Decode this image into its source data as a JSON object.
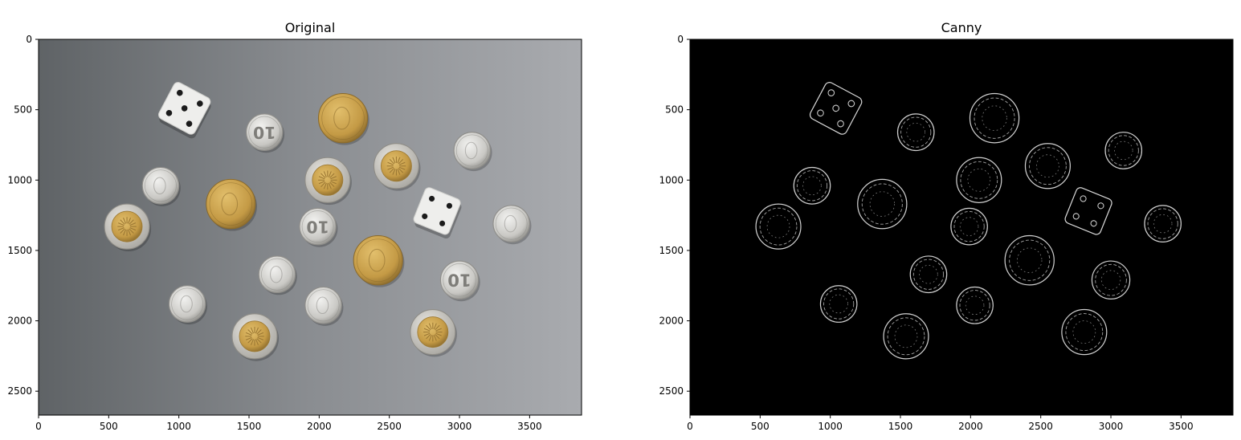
{
  "panels": [
    {
      "id": "original",
      "title": "Original",
      "x_ticks": [
        0,
        500,
        1000,
        1500,
        2000,
        2500,
        3000,
        3500
      ],
      "y_ticks": [
        0,
        500,
        1000,
        1500,
        2000,
        2500
      ],
      "xlim": [
        0,
        3870
      ],
      "ylim": [
        2670,
        0
      ]
    },
    {
      "id": "canny",
      "title": "Canny",
      "x_ticks": [
        0,
        500,
        1000,
        1500,
        2000,
        2500,
        3000,
        3500
      ],
      "y_ticks": [
        0,
        500,
        1000,
        1500,
        2000,
        2500
      ],
      "xlim": [
        0,
        3870
      ],
      "ylim": [
        2670,
        0
      ]
    }
  ],
  "scene": {
    "background_colors": [
      "#5f6366",
      "#8a8d91",
      "#a9abaf"
    ],
    "dice": [
      {
        "x": 1040,
        "y": 490,
        "size": 290,
        "angle": 28,
        "pips": 5
      },
      {
        "x": 2840,
        "y": 1220,
        "size": 270,
        "angle": 22,
        "pips": 4
      }
    ],
    "coins": [
      {
        "x": 1610,
        "y": 660,
        "r": 130,
        "type": "silver",
        "label": "10"
      },
      {
        "x": 2170,
        "y": 560,
        "r": 175,
        "type": "gold",
        "label": ""
      },
      {
        "x": 3090,
        "y": 790,
        "r": 130,
        "type": "silver",
        "label": ""
      },
      {
        "x": 2550,
        "y": 900,
        "r": 160,
        "type": "bimetal",
        "label": ""
      },
      {
        "x": 2060,
        "y": 1000,
        "r": 160,
        "type": "bimetal",
        "label": ""
      },
      {
        "x": 870,
        "y": 1040,
        "r": 130,
        "type": "silver",
        "label": ""
      },
      {
        "x": 1370,
        "y": 1170,
        "r": 175,
        "type": "gold",
        "label": ""
      },
      {
        "x": 630,
        "y": 1330,
        "r": 160,
        "type": "bimetal",
        "label": ""
      },
      {
        "x": 1990,
        "y": 1330,
        "r": 130,
        "type": "silver",
        "label": "10"
      },
      {
        "x": 3370,
        "y": 1310,
        "r": 130,
        "type": "silver",
        "label": ""
      },
      {
        "x": 2420,
        "y": 1570,
        "r": 175,
        "type": "gold",
        "label": ""
      },
      {
        "x": 1700,
        "y": 1670,
        "r": 130,
        "type": "silver",
        "label": ""
      },
      {
        "x": 3000,
        "y": 1710,
        "r": 135,
        "type": "silver",
        "label": "10"
      },
      {
        "x": 1060,
        "y": 1880,
        "r": 130,
        "type": "silver",
        "label": ""
      },
      {
        "x": 2030,
        "y": 1890,
        "r": 130,
        "type": "silver",
        "label": ""
      },
      {
        "x": 1540,
        "y": 2110,
        "r": 160,
        "type": "bimetal",
        "label": ""
      },
      {
        "x": 2810,
        "y": 2080,
        "r": 160,
        "type": "bimetal",
        "label": ""
      }
    ]
  }
}
